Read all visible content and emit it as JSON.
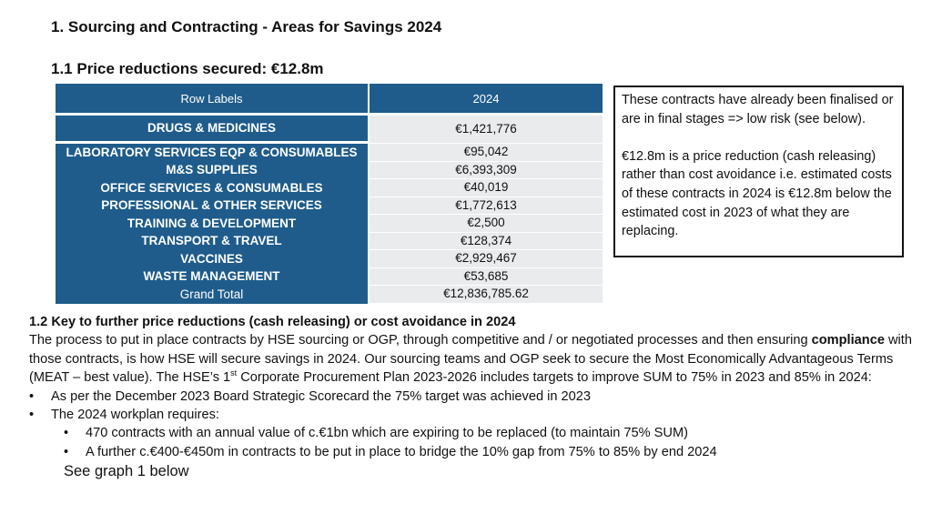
{
  "heading": "1.   Sourcing and Contracting - Areas for Savings 2024",
  "subheading": "1.1 Price reductions secured: €12.8m",
  "table": {
    "col_row_labels": "Row Labels",
    "col_year": "2024",
    "rows": [
      {
        "label": "DRUGS & MEDICINES",
        "value": "€1,421,776"
      },
      {
        "label": "LABORATORY SERVICES EQP & CONSUMABLES",
        "value": "€95,042"
      },
      {
        "label": "M&S SUPPLIES",
        "value": "€6,393,309"
      },
      {
        "label": "OFFICE SERVICES & CONSUMABLES",
        "value": "€40,019"
      },
      {
        "label": "PROFESSIONAL & OTHER SERVICES",
        "value": "€1,772,613"
      },
      {
        "label": "TRAINING & DEVELOPMENT",
        "value": "€2,500"
      },
      {
        "label": "TRANSPORT & TRAVEL",
        "value": "€128,374"
      },
      {
        "label": "VACCINES",
        "value": "€2,929,467"
      },
      {
        "label": "WASTE MANAGEMENT",
        "value": "€53,685"
      }
    ],
    "total_label": "Grand Total",
    "total_value": "€12,836,785.62"
  },
  "note": {
    "p1": "These contracts have already been finalised or are in final stages => low risk (see below).",
    "p2": "€12.8m is a price reduction (cash releasing) rather than cost avoidance i.e. estimated costs of these contracts in 2024 is €12.8m below the estimated cost in 2023 of what they are replacing."
  },
  "section2": {
    "title": "1.2 Key to further price reductions (cash releasing) or cost avoidance in 2024",
    "para_a": "The process to put in place contracts by HSE sourcing or OGP, through competitive and / or negotiated processes and then ensuring",
    "para_bold": "compliance",
    "para_b": "with those contracts, is how HSE will secure savings in 2024. Our sourcing teams and OGP seek to secure the Most Economically Advantageous Terms (MEAT – best value). The HSE’s 1",
    "para_sup": "st",
    "para_c": "Corporate Procurement Plan 2023-2026 includes targets to improve SUM to 75% in 2023 and 85% in 2024:",
    "bullet1": "As per the December 2023 Board Strategic Scorecard the 75% target was achieved in 2023",
    "bullet2": "The 2024 workplan requires:",
    "sub1": "470 contracts with an annual value of c.€1bn which are expiring to be replaced (to maintain 75% SUM)",
    "sub2": "A further c.€400-€450m in contracts to be put in place to bridge the 10% gap from 75% to 85% by end 2024",
    "see": "See graph 1 below"
  }
}
